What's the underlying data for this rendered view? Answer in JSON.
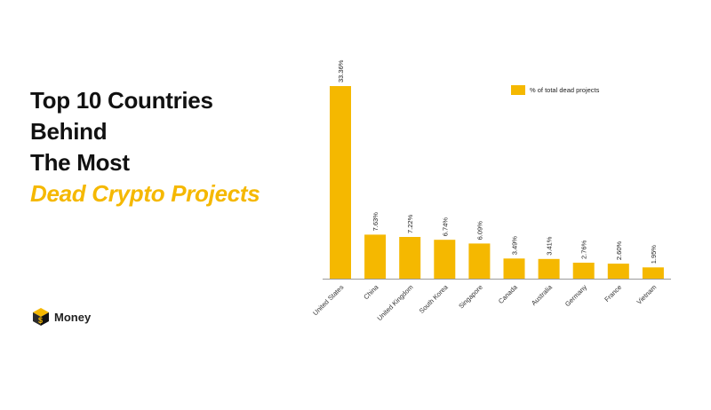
{
  "headline": {
    "line1": "Top 10 Countries",
    "line2": "Behind",
    "line3": "The Most",
    "line4": "Dead Crypto Projects"
  },
  "brand": {
    "name": "Money",
    "icon": "cube-logo-icon"
  },
  "colors": {
    "accent": "#F5B800",
    "text": "#111111",
    "axis": "#9a9a9a"
  },
  "chart_data": {
    "type": "bar",
    "categories": [
      "United States",
      "China",
      "United Kingdom",
      "South Korea",
      "Singapore",
      "Canada",
      "Australia",
      "Germany",
      "France",
      "Vietnam"
    ],
    "series": [
      {
        "name": "% of total dead projects",
        "values": [
          33.36,
          7.63,
          7.22,
          6.74,
          6.09,
          3.49,
          3.41,
          2.76,
          2.6,
          1.95
        ],
        "labels": [
          "33.36%",
          "7.63%",
          "7.22%",
          "6.74%",
          "6.09%",
          "3.49%",
          "3.41%",
          "2.76%",
          "2.60%",
          "1.95%"
        ]
      }
    ],
    "title": "",
    "xlabel": "",
    "ylabel": "",
    "ylim": [
      0,
      33.36
    ],
    "grid": false,
    "legend": "top-right"
  }
}
